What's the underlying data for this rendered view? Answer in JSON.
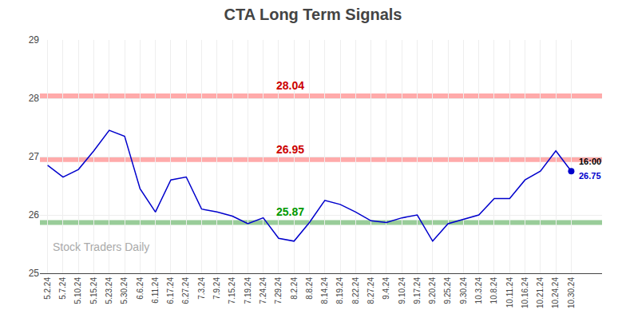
{
  "chart_data": {
    "type": "line",
    "title": "CTA Long Term Signals",
    "categories": [
      "5.2.24",
      "5.7.24",
      "5.10.24",
      "5.15.24",
      "5.23.24",
      "5.30.24",
      "6.6.24",
      "6.11.24",
      "6.17.24",
      "6.27.24",
      "7.3.24",
      "7.9.24",
      "7.15.24",
      "7.19.24",
      "7.24.24",
      "7.29.24",
      "8.2.24",
      "8.8.24",
      "8.14.24",
      "8.19.24",
      "8.22.24",
      "8.27.24",
      "9.4.24",
      "9.10.24",
      "9.17.24",
      "9.20.24",
      "9.25.24",
      "9.30.24",
      "10.3.24",
      "10.8.24",
      "10.11.24",
      "10.16.24",
      "10.21.24",
      "10.24.24",
      "10.30.24"
    ],
    "values": [
      26.85,
      26.65,
      26.78,
      27.1,
      27.45,
      27.35,
      26.45,
      26.05,
      26.6,
      26.65,
      26.1,
      26.05,
      25.98,
      25.85,
      25.95,
      25.6,
      25.55,
      25.87,
      26.25,
      26.18,
      26.05,
      25.9,
      25.87,
      25.95,
      26.0,
      25.55,
      25.85,
      25.92,
      26.0,
      26.28,
      26.28,
      26.6,
      26.75,
      27.1,
      26.75
    ],
    "color": "#0000cc",
    "hlines": [
      {
        "value": 28.04,
        "label": "28.04",
        "color": "#ffaaaa",
        "label_color": "#cc0000"
      },
      {
        "value": 26.95,
        "label": "26.95",
        "color": "#ffaaaa",
        "label_color": "#cc0000"
      },
      {
        "value": 25.87,
        "label": "25.87",
        "color": "#99cc99",
        "label_color": "#009900"
      }
    ],
    "end_point": {
      "value": 26.75,
      "label": "26.75",
      "time_label": "16:00",
      "color": "#0000cc"
    },
    "watermark": {
      "text": "Stock Traders Daily",
      "color": "#aaaaaa"
    },
    "ylim": [
      25.0,
      29.0
    ],
    "yticks": [
      25,
      26,
      27,
      28,
      29
    ],
    "grid": true
  }
}
